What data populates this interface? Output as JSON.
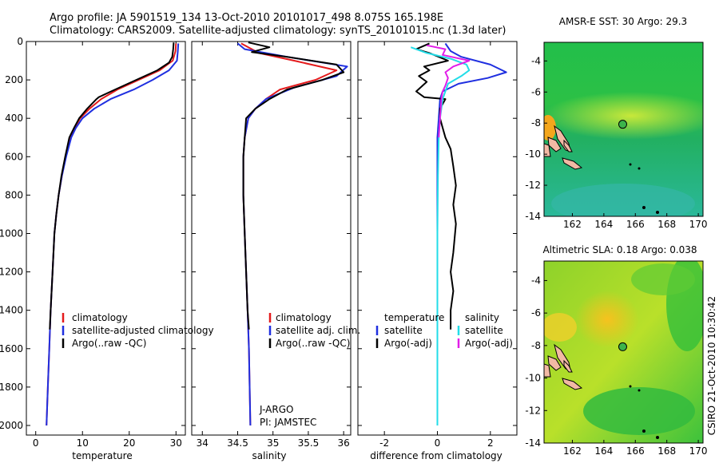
{
  "header": {
    "line1": "Argo profile: JA 5901519_134 13-Oct-2010 20101017_498 8.075S 165.198E",
    "line2": "Climatology: CARS2009. Satellite-adjusted climatology: synTS_20101015.nc (1.3d later)"
  },
  "side_label": "CSIRO 21-Oct-2010 10:30:42",
  "colors": {
    "climatology": "#e41a1c",
    "satellite": "#1f2fe0",
    "argo": "#000000",
    "salinity_satellite": "#22dde8",
    "salinity_argo": "#e11ee8",
    "float_marker": "#3cb44b",
    "land": "#f2b9a4"
  },
  "chart_data": [
    {
      "type": "line",
      "panel": "temperature",
      "xlabel": "temperature",
      "ylabel": "",
      "xlim": [
        -2,
        32
      ],
      "ylim": [
        2050,
        0
      ],
      "xticks": [
        0,
        10,
        20,
        30
      ],
      "yticks": [
        0,
        200,
        400,
        600,
        800,
        1000,
        1200,
        1400,
        1600,
        1800,
        2000
      ],
      "legend": [
        "climatology",
        "satellite-adjusted climatology",
        "Argo(..raw -QC)"
      ],
      "series": [
        {
          "name": "climatology",
          "color": "climatology",
          "points": [
            [
              30,
              10
            ],
            [
              29.9,
              50
            ],
            [
              29.3,
              100
            ],
            [
              26.5,
              150
            ],
            [
              22,
              200
            ],
            [
              17.5,
              250
            ],
            [
              14,
              300
            ],
            [
              11.5,
              350
            ],
            [
              9.5,
              400
            ],
            [
              8.3,
              450
            ],
            [
              7.4,
              500
            ],
            [
              6.4,
              600
            ],
            [
              5.6,
              700
            ],
            [
              4.9,
              800
            ],
            [
              4.4,
              900
            ],
            [
              4,
              1000
            ],
            [
              3.6,
              1200
            ],
            [
              3.2,
              1400
            ],
            [
              2.9,
              1600
            ],
            [
              2.6,
              1800
            ],
            [
              2.3,
              2000
            ]
          ]
        },
        {
          "name": "satellite-adjusted climatology",
          "color": "satellite",
          "points": [
            [
              30.5,
              10
            ],
            [
              30.4,
              50
            ],
            [
              30.2,
              100
            ],
            [
              28.5,
              150
            ],
            [
              25,
              200
            ],
            [
              21,
              250
            ],
            [
              16,
              300
            ],
            [
              12.5,
              350
            ],
            [
              10,
              400
            ],
            [
              8.6,
              450
            ],
            [
              7.6,
              500
            ],
            [
              6.5,
              600
            ],
            [
              5.6,
              700
            ],
            [
              4.9,
              800
            ],
            [
              4.4,
              900
            ],
            [
              4,
              1000
            ],
            [
              3.6,
              1200
            ],
            [
              3.2,
              1400
            ],
            [
              2.9,
              1600
            ],
            [
              2.6,
              1800
            ],
            [
              2.3,
              2000
            ]
          ]
        },
        {
          "name": "Argo(..raw -QC)",
          "color": "argo",
          "points": [
            [
              29.5,
              5
            ],
            [
              29.4,
              40
            ],
            [
              29.2,
              80
            ],
            [
              28.5,
              110
            ],
            [
              26,
              150
            ],
            [
              21.5,
              200
            ],
            [
              17,
              250
            ],
            [
              13.5,
              290
            ],
            [
              13,
              300
            ],
            [
              11,
              350
            ],
            [
              9.3,
              400
            ],
            [
              8.2,
              450
            ],
            [
              7.2,
              500
            ],
            [
              6.3,
              600
            ],
            [
              5.5,
              700
            ],
            [
              4.9,
              800
            ],
            [
              4.4,
              900
            ],
            [
              4,
              1000
            ],
            [
              3.6,
              1200
            ],
            [
              3.2,
              1400
            ],
            [
              3,
              1500
            ]
          ]
        }
      ]
    },
    {
      "type": "line",
      "panel": "salinity",
      "xlabel": "salinity",
      "ylabel": "",
      "xlim": [
        33.85,
        36.1
      ],
      "ylim": [
        2050,
        0
      ],
      "xticks": [
        34,
        34.5,
        35,
        35.5,
        36
      ],
      "xticklabels": [
        "34",
        "34.5",
        "35",
        "35.5",
        "36"
      ],
      "legend": [
        "climatology",
        "satellite adj. clim.",
        "Argo(..raw -QC)"
      ],
      "annotation": [
        "J-ARGO",
        "PI: JAMSTEC"
      ],
      "series": [
        {
          "name": "climatology",
          "color": "climatology",
          "points": [
            [
              34.55,
              10
            ],
            [
              34.8,
              60
            ],
            [
              35.3,
              100
            ],
            [
              35.9,
              150
            ],
            [
              35.6,
              200
            ],
            [
              35.1,
              250
            ],
            [
              34.9,
              300
            ],
            [
              34.75,
              350
            ],
            [
              34.65,
              400
            ],
            [
              34.6,
              500
            ],
            [
              34.58,
              600
            ],
            [
              34.58,
              800
            ],
            [
              34.6,
              1000
            ],
            [
              34.62,
              1200
            ],
            [
              34.64,
              1400
            ],
            [
              34.66,
              1600
            ],
            [
              34.67,
              1800
            ],
            [
              34.68,
              2000
            ]
          ]
        },
        {
          "name": "satellite adj. clim.",
          "color": "satellite",
          "points": [
            [
              34.5,
              10
            ],
            [
              34.6,
              40
            ],
            [
              35.2,
              80
            ],
            [
              36.05,
              130
            ],
            [
              35.9,
              180
            ],
            [
              35.3,
              240
            ],
            [
              34.9,
              300
            ],
            [
              34.75,
              350
            ],
            [
              34.65,
              400
            ],
            [
              34.6,
              500
            ],
            [
              34.58,
              600
            ],
            [
              34.58,
              800
            ],
            [
              34.6,
              1000
            ],
            [
              34.62,
              1200
            ],
            [
              34.64,
              1400
            ],
            [
              34.66,
              1600
            ],
            [
              34.67,
              1800
            ],
            [
              34.68,
              2000
            ]
          ]
        },
        {
          "name": "Argo(..raw -QC)",
          "color": "argo",
          "points": [
            [
              34.65,
              5
            ],
            [
              34.95,
              30
            ],
            [
              34.7,
              55
            ],
            [
              35.2,
              80
            ],
            [
              35.9,
              120
            ],
            [
              36,
              160
            ],
            [
              35.7,
              200
            ],
            [
              35.2,
              250
            ],
            [
              34.95,
              300
            ],
            [
              34.75,
              350
            ],
            [
              34.62,
              400
            ],
            [
              34.6,
              500
            ],
            [
              34.58,
              600
            ],
            [
              34.58,
              800
            ],
            [
              34.6,
              1000
            ],
            [
              34.62,
              1200
            ],
            [
              34.64,
              1400
            ],
            [
              34.66,
              1500
            ]
          ]
        }
      ]
    },
    {
      "type": "line",
      "panel": "difference",
      "xlabel": "difference from climatology",
      "ylabel": "",
      "xlim": [
        -3,
        3
      ],
      "ylim": [
        2050,
        0
      ],
      "xticks": [
        -2,
        0,
        2
      ],
      "legend_groups": [
        {
          "heading": "temperature",
          "items": [
            "satellite",
            "Argo(-adj)"
          ]
        },
        {
          "heading": "salinity",
          "items": [
            "satellite",
            "Argo(-adj)"
          ]
        }
      ],
      "series": [
        {
          "name": "temperature satellite",
          "color": "satellite",
          "points": [
            [
              0.3,
              10
            ],
            [
              0.5,
              50
            ],
            [
              0.9,
              80
            ],
            [
              2,
              120
            ],
            [
              2.6,
              160
            ],
            [
              1.9,
              190
            ],
            [
              0.8,
              220
            ],
            [
              0.2,
              260
            ],
            [
              0.1,
              300
            ],
            [
              0.05,
              400
            ],
            [
              0,
              500
            ],
            [
              0,
              800
            ],
            [
              0,
              1200
            ],
            [
              0,
              1600
            ],
            [
              0,
              2000
            ]
          ]
        },
        {
          "name": "temperature Argo(-adj)",
          "color": "argo",
          "points": [
            [
              -0.3,
              10
            ],
            [
              -0.8,
              40
            ],
            [
              -0.3,
              60
            ],
            [
              0.4,
              100
            ],
            [
              -0.5,
              130
            ],
            [
              -0.3,
              150
            ],
            [
              -0.7,
              180
            ],
            [
              -0.4,
              210
            ],
            [
              -0.8,
              260
            ],
            [
              -0.5,
              290
            ],
            [
              0.3,
              300
            ],
            [
              0.1,
              350
            ],
            [
              0.1,
              400
            ],
            [
              0.2,
              450
            ],
            [
              0.3,
              500
            ],
            [
              0.5,
              560
            ],
            [
              0.6,
              650
            ],
            [
              0.7,
              750
            ],
            [
              0.6,
              850
            ],
            [
              0.7,
              950
            ],
            [
              0.6,
              1100
            ],
            [
              0.5,
              1200
            ],
            [
              0.6,
              1300
            ],
            [
              0.5,
              1400
            ],
            [
              0.5,
              1500
            ]
          ]
        },
        {
          "name": "salinity satellite",
          "color": "salinity_satellite",
          "points": [
            [
              -1,
              30
            ],
            [
              -0.4,
              60
            ],
            [
              0.5,
              90
            ],
            [
              1.1,
              120
            ],
            [
              1.2,
              150
            ],
            [
              0.9,
              180
            ],
            [
              0.4,
              220
            ],
            [
              0.2,
              300
            ],
            [
              0.1,
              400
            ],
            [
              0.05,
              500
            ],
            [
              0.02,
              700
            ],
            [
              0,
              1000
            ],
            [
              0,
              1500
            ],
            [
              0,
              2000
            ]
          ]
        },
        {
          "name": "salinity Argo(-adj)",
          "color": "salinity_argo",
          "points": [
            [
              -0.4,
              20
            ],
            [
              0.3,
              40
            ],
            [
              0.2,
              70
            ],
            [
              1.2,
              100
            ],
            [
              0.6,
              130
            ],
            [
              0.3,
              160
            ],
            [
              0.4,
              190
            ],
            [
              0.3,
              230
            ],
            [
              0.2,
              260
            ],
            [
              0.15,
              300
            ],
            [
              0.1,
              400
            ],
            [
              0.05,
              500
            ]
          ]
        }
      ]
    },
    {
      "type": "heatmap",
      "panel": "map_sst",
      "title": "AMSR-E SST: 30 Argo: 29.3",
      "xlim": [
        160.2,
        170.3
      ],
      "ylim": [
        -14,
        -2.8
      ],
      "xticks": [
        162,
        164,
        166,
        168,
        170
      ],
      "yticks": [
        -4,
        -6,
        -8,
        -10,
        -12,
        -14
      ],
      "float_position": {
        "lon": 165.198,
        "lat": -8.075
      }
    },
    {
      "type": "heatmap",
      "panel": "map_sla",
      "title": "Altimetric SLA: 0.18 Argo: 0.038",
      "xlim": [
        160.2,
        170.3
      ],
      "ylim": [
        -14,
        -2.8
      ],
      "xticks": [
        162,
        164,
        166,
        168,
        170
      ],
      "yticks": [
        -4,
        -6,
        -8,
        -10,
        -12,
        -14
      ],
      "float_position": {
        "lon": 165.198,
        "lat": -8.075
      }
    }
  ]
}
